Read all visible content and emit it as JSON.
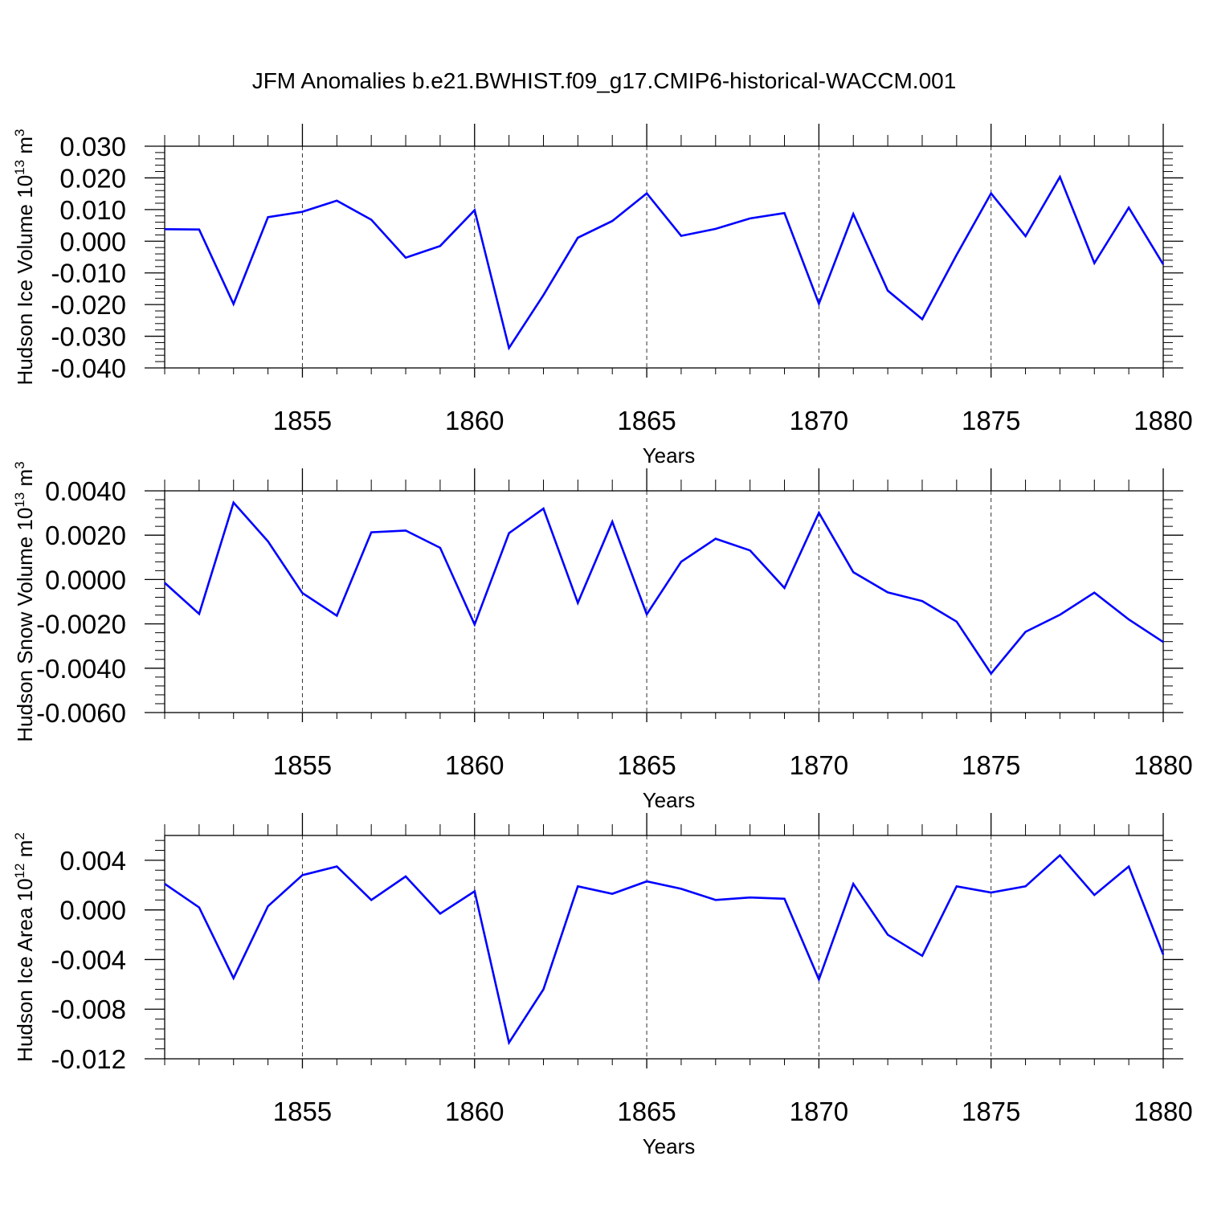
{
  "figure": {
    "title": "JFM Anomalies b.e21.BWHIST.f09_g17.CMIP6-historical-WACCM.001",
    "line_color": "#0000ff"
  },
  "chart_data": [
    {
      "type": "line",
      "id": "ice_volume",
      "xlabel": "Years",
      "ylabel": {
        "base": "Hudson Ice Volume 10",
        "exp": "13",
        "unit": " m",
        "unit_exp": "3"
      },
      "xlim": [
        1851,
        1880
      ],
      "ylim": [
        -0.04,
        0.03
      ],
      "x_ticks": [
        1855,
        1860,
        1865,
        1870,
        1875,
        1880
      ],
      "x_tick_labels": [
        "1855",
        "1860",
        "1865",
        "1870",
        "1875",
        "1880"
      ],
      "y_ticks": [
        -0.04,
        -0.03,
        -0.02,
        -0.01,
        0.0,
        0.01,
        0.02,
        0.03
      ],
      "y_tick_labels": [
        "-0.040",
        "-0.030",
        "-0.020",
        "-0.010",
        "0.000",
        "0.010",
        "0.020",
        "0.030"
      ],
      "grid": "vertical-dashed",
      "x": [
        1851,
        1852,
        1853,
        1854,
        1855,
        1856,
        1857,
        1858,
        1859,
        1860,
        1861,
        1862,
        1863,
        1864,
        1865,
        1866,
        1867,
        1868,
        1869,
        1870,
        1871,
        1872,
        1873,
        1874,
        1875,
        1876,
        1877,
        1878,
        1879,
        1880
      ],
      "values": [
        0.0038,
        0.0037,
        -0.0198,
        0.0076,
        0.0093,
        0.0128,
        0.0068,
        -0.0052,
        -0.0015,
        0.0098,
        -0.0337,
        -0.017,
        0.0011,
        0.0064,
        0.0151,
        0.0017,
        0.0039,
        0.0072,
        0.0089,
        -0.0197,
        0.0086,
        -0.0156,
        -0.0246,
        -0.0043,
        0.0151,
        0.0016,
        0.0203,
        -0.0069,
        0.0106,
        -0.0073
      ]
    },
    {
      "type": "line",
      "id": "snow_volume",
      "xlabel": "Years",
      "ylabel": {
        "base": "Hudson Snow Volume 10",
        "exp": "13",
        "unit": " m",
        "unit_exp": "3"
      },
      "xlim": [
        1851,
        1880
      ],
      "ylim": [
        -0.006,
        0.004
      ],
      "x_ticks": [
        1855,
        1860,
        1865,
        1870,
        1875,
        1880
      ],
      "x_tick_labels": [
        "1855",
        "1860",
        "1865",
        "1870",
        "1875",
        "1880"
      ],
      "y_ticks": [
        -0.006,
        -0.004,
        -0.002,
        0.0,
        0.002,
        0.004
      ],
      "y_tick_labels": [
        "-0.0060",
        "-0.0040",
        "-0.0020",
        "0.0000",
        "0.0020",
        "0.0040"
      ],
      "grid": "vertical-dashed",
      "x": [
        1851,
        1852,
        1853,
        1854,
        1855,
        1856,
        1857,
        1858,
        1859,
        1860,
        1861,
        1862,
        1863,
        1864,
        1865,
        1866,
        1867,
        1868,
        1869,
        1870,
        1871,
        1872,
        1873,
        1874,
        1875,
        1876,
        1877,
        1878,
        1879,
        1880
      ],
      "values": [
        -0.00015,
        -0.00155,
        0.00347,
        0.00172,
        -0.00061,
        -0.00163,
        0.00213,
        0.00221,
        0.00143,
        -0.00203,
        0.00209,
        0.0032,
        -0.00105,
        0.00261,
        -0.00157,
        0.0008,
        0.00184,
        0.00131,
        -0.00038,
        0.00301,
        0.00033,
        -0.00058,
        -0.00097,
        -0.0019,
        -0.00424,
        -0.00236,
        -0.00159,
        -0.00059,
        -0.0018,
        -0.00282
      ]
    },
    {
      "type": "line",
      "id": "ice_area",
      "xlabel": "Years",
      "ylabel": {
        "base": "Hudson Ice Area 10",
        "exp": "12",
        "unit": " m",
        "unit_exp": "2"
      },
      "xlim": [
        1851,
        1880
      ],
      "ylim": [
        -0.012,
        0.006
      ],
      "x_ticks": [
        1855,
        1860,
        1865,
        1870,
        1875,
        1880
      ],
      "x_tick_labels": [
        "1855",
        "1860",
        "1865",
        "1870",
        "1875",
        "1880"
      ],
      "y_ticks": [
        -0.012,
        -0.008,
        -0.004,
        0.0,
        0.004
      ],
      "y_tick_labels": [
        "-0.012",
        "-0.008",
        "-0.004",
        "0.000",
        "0.004"
      ],
      "grid": "vertical-dashed",
      "x": [
        1851,
        1852,
        1853,
        1854,
        1855,
        1856,
        1857,
        1858,
        1859,
        1860,
        1861,
        1862,
        1863,
        1864,
        1865,
        1866,
        1867,
        1868,
        1869,
        1870,
        1871,
        1872,
        1873,
        1874,
        1875,
        1876,
        1877,
        1878,
        1879,
        1880
      ],
      "values": [
        0.0021,
        0.0002,
        -0.0055,
        0.0003,
        0.0028,
        0.0035,
        0.0008,
        0.0027,
        -0.0003,
        0.0015,
        -0.0107,
        -0.0064,
        0.0019,
        0.0013,
        0.0023,
        0.0017,
        0.0008,
        0.001,
        0.0009,
        -0.0056,
        0.0021,
        -0.002,
        -0.0037,
        0.0019,
        0.0014,
        0.0019,
        0.0044,
        0.0012,
        0.0035,
        -0.0036
      ]
    }
  ]
}
